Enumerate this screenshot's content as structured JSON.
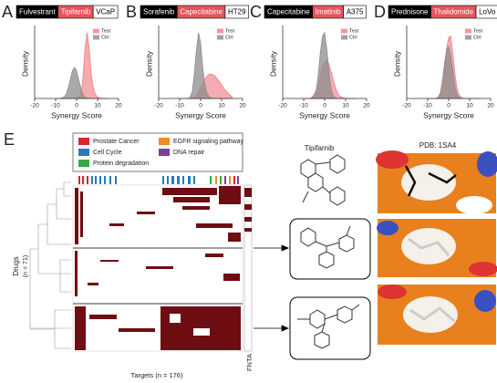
{
  "chart_data": [
    {
      "type": "density",
      "panel": "A",
      "title": [
        "Fulvestrant",
        "Tipifarnib",
        "VCaP"
      ],
      "x_label": "Synergy Score",
      "y_label": "Density",
      "xlim": [
        -20,
        20
      ],
      "xticks": [
        -20,
        -10,
        0,
        10,
        20
      ],
      "ylim": [
        0,
        1
      ],
      "x": [
        -10,
        -9,
        -8,
        -7,
        -6,
        -5,
        -4,
        -3,
        -2,
        -1,
        0,
        1,
        2,
        3,
        4,
        5,
        6,
        7,
        8,
        9,
        10,
        11,
        12,
        13,
        14,
        15
      ],
      "series": [
        {
          "name": "Test",
          "color": "#ee7f86",
          "values": [
            0,
            0,
            0,
            0,
            0,
            0,
            0,
            0,
            0,
            0,
            0.01,
            0.02,
            0.07,
            0.28,
            0.72,
            0.95,
            0.72,
            0.35,
            0.15,
            0.06,
            0.02,
            0.01,
            0,
            0,
            0,
            0
          ]
        },
        {
          "name": "Ctrl",
          "color": "#8c8c8c",
          "values": [
            0,
            0,
            0,
            0.01,
            0.02,
            0.06,
            0.15,
            0.27,
            0.4,
            0.45,
            0.4,
            0.27,
            0.15,
            0.06,
            0.02,
            0.01,
            0,
            0,
            0,
            0,
            0,
            0,
            0,
            0,
            0,
            0
          ]
        }
      ]
    },
    {
      "type": "density",
      "panel": "B",
      "title": [
        "Sorafenib",
        "Capecitabine",
        "HT29"
      ],
      "x_label": "Synergy Score",
      "y_label": "Density",
      "xlim": [
        -20,
        20
      ],
      "xticks": [
        -20,
        -10,
        0,
        10,
        20
      ],
      "ylim": [
        0,
        1
      ],
      "x": [
        -10,
        -9,
        -8,
        -7,
        -6,
        -5,
        -4,
        -3,
        -2,
        -1,
        0,
        1,
        2,
        3,
        4,
        5,
        6,
        7,
        8,
        9,
        10,
        11,
        12,
        13,
        14,
        15
      ],
      "series": [
        {
          "name": "Test",
          "color": "#ee7f86",
          "values": [
            0,
            0,
            0,
            0,
            0,
            0,
            0,
            0.02,
            0.05,
            0.1,
            0.15,
            0.22,
            0.28,
            0.32,
            0.35,
            0.35,
            0.34,
            0.32,
            0.28,
            0.24,
            0.2,
            0.15,
            0.11,
            0.08,
            0.05,
            0.03
          ]
        },
        {
          "name": "Ctrl",
          "color": "#8c8c8c",
          "values": [
            0,
            0,
            0,
            0,
            0,
            0.02,
            0.1,
            0.35,
            0.7,
            0.95,
            0.8,
            0.45,
            0.2,
            0.08,
            0.03,
            0.01,
            0,
            0,
            0,
            0,
            0,
            0,
            0,
            0,
            0,
            0
          ]
        }
      ]
    },
    {
      "type": "density",
      "panel": "C",
      "title": [
        "Capecitabine",
        "Imatinib",
        "A375"
      ],
      "x_label": "Synergy Score",
      "y_label": "Density",
      "xlim": [
        -20,
        20
      ],
      "xticks": [
        -20,
        -10,
        0,
        10,
        20
      ],
      "ylim": [
        0,
        1
      ],
      "x": [
        -10,
        -9,
        -8,
        -7,
        -6,
        -5,
        -4,
        -3,
        -2,
        -1,
        0,
        1,
        2,
        3,
        4,
        5,
        6,
        7,
        8,
        9,
        10,
        11,
        12,
        13,
        14,
        15
      ],
      "series": [
        {
          "name": "Test",
          "color": "#ee7f86",
          "values": [
            0,
            0,
            0,
            0,
            0.02,
            0.06,
            0.12,
            0.2,
            0.32,
            0.45,
            0.53,
            0.55,
            0.5,
            0.4,
            0.28,
            0.17,
            0.09,
            0.04,
            0.02,
            0.01,
            0,
            0,
            0,
            0,
            0,
            0
          ]
        },
        {
          "name": "Ctrl",
          "color": "#8c8c8c",
          "values": [
            0,
            0,
            0,
            0,
            0.01,
            0.03,
            0.12,
            0.35,
            0.68,
            0.9,
            0.95,
            0.72,
            0.4,
            0.15,
            0.05,
            0.01,
            0,
            0,
            0,
            0,
            0,
            0,
            0,
            0,
            0,
            0
          ]
        }
      ]
    },
    {
      "type": "density",
      "panel": "D",
      "title": [
        "Prednisone",
        "Thalidomide",
        "LoVo"
      ],
      "x_label": "Synergy Score",
      "y_label": "Density",
      "xlim": [
        -20,
        20
      ],
      "xticks": [
        -20,
        -10,
        0,
        10,
        20
      ],
      "ylim": [
        0,
        1
      ],
      "x": [
        -10,
        -9,
        -8,
        -7,
        -6,
        -5,
        -4,
        -3,
        -2,
        -1,
        0,
        1,
        2,
        3,
        4,
        5,
        6,
        7,
        8,
        9,
        10,
        11,
        12,
        13,
        14,
        15
      ],
      "series": [
        {
          "name": "Test",
          "color": "#ee7f86",
          "values": [
            0,
            0,
            0,
            0,
            0,
            0,
            0.03,
            0.15,
            0.4,
            0.72,
            0.88,
            0.9,
            0.65,
            0.35,
            0.14,
            0.05,
            0.02,
            0,
            0,
            0,
            0,
            0,
            0,
            0,
            0,
            0
          ]
        },
        {
          "name": "Ctrl",
          "color": "#8c8c8c",
          "values": [
            0,
            0,
            0,
            0,
            0,
            0.02,
            0.08,
            0.25,
            0.5,
            0.7,
            0.75,
            0.62,
            0.4,
            0.18,
            0.06,
            0.02,
            0,
            0,
            0,
            0,
            0,
            0,
            0,
            0,
            0,
            0
          ]
        }
      ]
    }
  ],
  "panel_e": {
    "panel": "E",
    "legend": [
      {
        "name": "Prostate Cancer",
        "color": "#d7262b"
      },
      {
        "name": "Cell Cycle",
        "color": "#2a7ab8"
      },
      {
        "name": "Protein degradation",
        "color": "#3aa845"
      },
      {
        "name": "EGFR signaling pathway",
        "color": "#f08a24"
      },
      {
        "name": "DNA repair",
        "color": "#7d3f98"
      }
    ],
    "y_label": [
      "Drugs",
      "(n = 71)"
    ],
    "x_label": "Targets (n = 176)",
    "target_label": "FNTA",
    "molecule_title": "Tipifarnib",
    "structure_title": "PDB: 1SA4"
  }
}
